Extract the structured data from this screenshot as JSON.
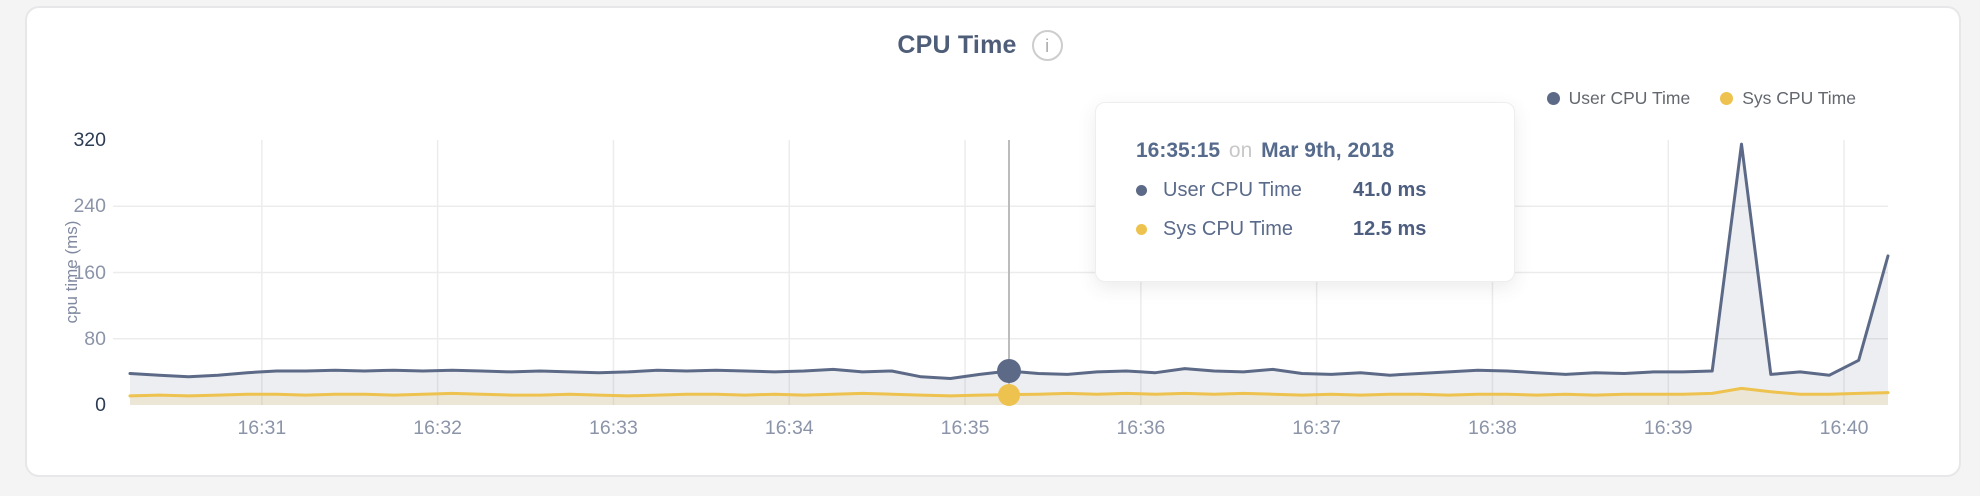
{
  "colors": {
    "user_series": "#5d6a87",
    "sys_series": "#eec24e",
    "user_fill": "rgba(99,112,139,0.12)",
    "sys_fill": "rgba(238,194,78,0.16)",
    "gridline": "#ececec",
    "crosshair": "#bcbcbc",
    "axis_label": "#8b94a8",
    "axis_label_strong": "#2d3c55",
    "title": "#4e5d78"
  },
  "header": {
    "title": "CPU Time",
    "info_glyph": "i"
  },
  "legend": {
    "items": [
      {
        "label": "User CPU Time",
        "color": "#5d6a87"
      },
      {
        "label": "Sys CPU Time",
        "color": "#eec24e"
      }
    ]
  },
  "tooltip": {
    "time": "16:35:15",
    "conjunction": "on",
    "date": "Mar 9th, 2018",
    "rows": [
      {
        "label": "User CPU Time",
        "value": "41.0 ms",
        "color": "#5d6a87"
      },
      {
        "label": "Sys CPU Time",
        "value": "12.5 ms",
        "color": "#eec24e"
      }
    ]
  },
  "chart_data": {
    "type": "area",
    "title": "CPU Time",
    "xlabel": "",
    "ylabel": "cpu time (ms)",
    "ylim": [
      0,
      320
    ],
    "yticks": [
      0,
      80,
      160,
      240,
      320
    ],
    "x_tick_labels": [
      "16:31",
      "16:32",
      "16:33",
      "16:34",
      "16:35",
      "16:36",
      "16:37",
      "16:38",
      "16:39",
      "16:40"
    ],
    "x_start_time": "16:30:15",
    "x_interval_seconds": 10,
    "grid": true,
    "legend_position": "top-right",
    "series": [
      {
        "name": "User CPU Time",
        "color": "#5d6a87",
        "fill": "rgba(99,112,139,0.12)",
        "values": [
          38,
          36,
          34,
          36,
          39,
          41,
          41,
          42,
          41,
          42,
          41,
          42,
          41,
          40,
          41,
          40,
          39,
          40,
          42,
          41,
          42,
          41,
          40,
          41,
          43,
          40,
          41,
          34,
          32,
          37,
          41,
          38,
          37,
          40,
          41,
          39,
          44,
          41,
          40,
          43,
          38,
          37,
          39,
          36,
          38,
          40,
          42,
          41,
          39,
          37,
          39,
          38,
          40,
          40,
          41,
          315,
          37,
          40,
          36,
          54,
          180
        ]
      },
      {
        "name": "Sys CPU Time",
        "color": "#eec24e",
        "fill": "rgba(238,194,78,0.16)",
        "values": [
          11,
          12,
          11,
          12,
          13,
          13,
          12,
          13,
          13,
          12,
          13,
          14,
          13,
          12,
          12,
          13,
          12,
          11,
          12,
          13,
          13,
          12,
          13,
          12,
          13,
          14,
          13,
          12,
          11,
          12,
          12.5,
          13,
          14,
          13,
          14,
          13,
          14,
          13,
          14,
          13,
          12,
          13,
          12,
          13,
          13,
          12,
          13,
          13,
          12,
          13,
          12,
          13,
          13,
          13,
          14,
          20,
          16,
          13,
          13,
          14,
          15
        ]
      }
    ],
    "highlight": {
      "index": 30,
      "time": "16:35:15",
      "values": [
        41.0,
        12.5
      ],
      "dot_sizes": [
        24,
        22
      ]
    }
  }
}
